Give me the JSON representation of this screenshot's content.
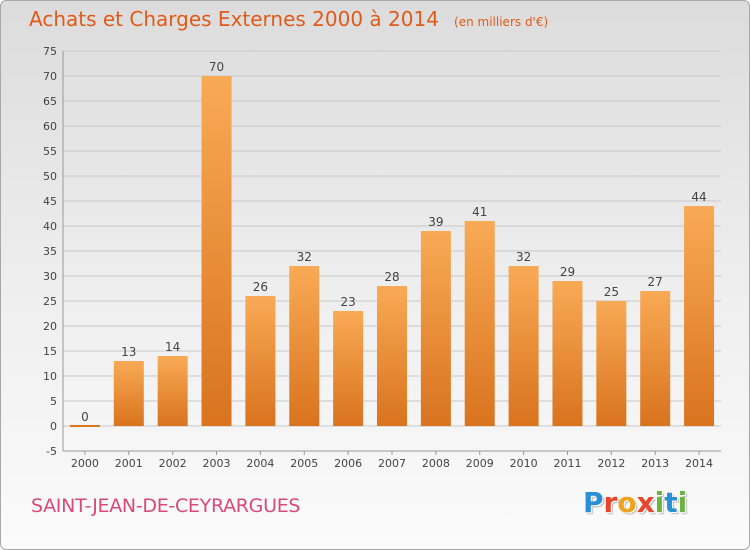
{
  "title": "Achats et Charges Externes 2000 à 2014",
  "unit_note": "(en milliers d'€)",
  "town": "SAINT-JEAN-DE-CEYRARGUES",
  "logo": {
    "text": "Proxiti",
    "letters": [
      {
        "char": "P",
        "color": "#2b8fd6"
      },
      {
        "char": "r",
        "color": "#e8452a"
      },
      {
        "char": "o",
        "color": "#f0a21e"
      },
      {
        "char": "x",
        "color": "#e8452a"
      },
      {
        "char": "i",
        "color": "#6cb33f"
      },
      {
        "char": "t",
        "color": "#2b8fd6"
      },
      {
        "char": "i",
        "color": "#6cb33f"
      }
    ]
  },
  "colors": {
    "bar_light": "#f9aa55",
    "bar_dark": "#d9731e",
    "title": "#e05a19",
    "town": "#d94a7a",
    "grid": "#c8c8c8"
  },
  "chart_data": {
    "type": "bar",
    "title": "Achats et Charges Externes 2000 à 2014",
    "subtitle": "(en milliers d'€)",
    "xlabel": "",
    "ylabel": "",
    "categories": [
      "2000",
      "2001",
      "2002",
      "2003",
      "2004",
      "2005",
      "2006",
      "2007",
      "2008",
      "2009",
      "2010",
      "2011",
      "2012",
      "2013",
      "2014"
    ],
    "values": [
      0,
      13,
      14,
      70,
      26,
      32,
      23,
      28,
      39,
      41,
      32,
      29,
      25,
      27,
      44
    ],
    "ylim": [
      -5,
      75
    ],
    "yticks": [
      -5,
      0,
      5,
      10,
      15,
      20,
      25,
      30,
      35,
      40,
      45,
      50,
      55,
      60,
      65,
      70,
      75
    ],
    "grid": true,
    "legend": "none"
  }
}
